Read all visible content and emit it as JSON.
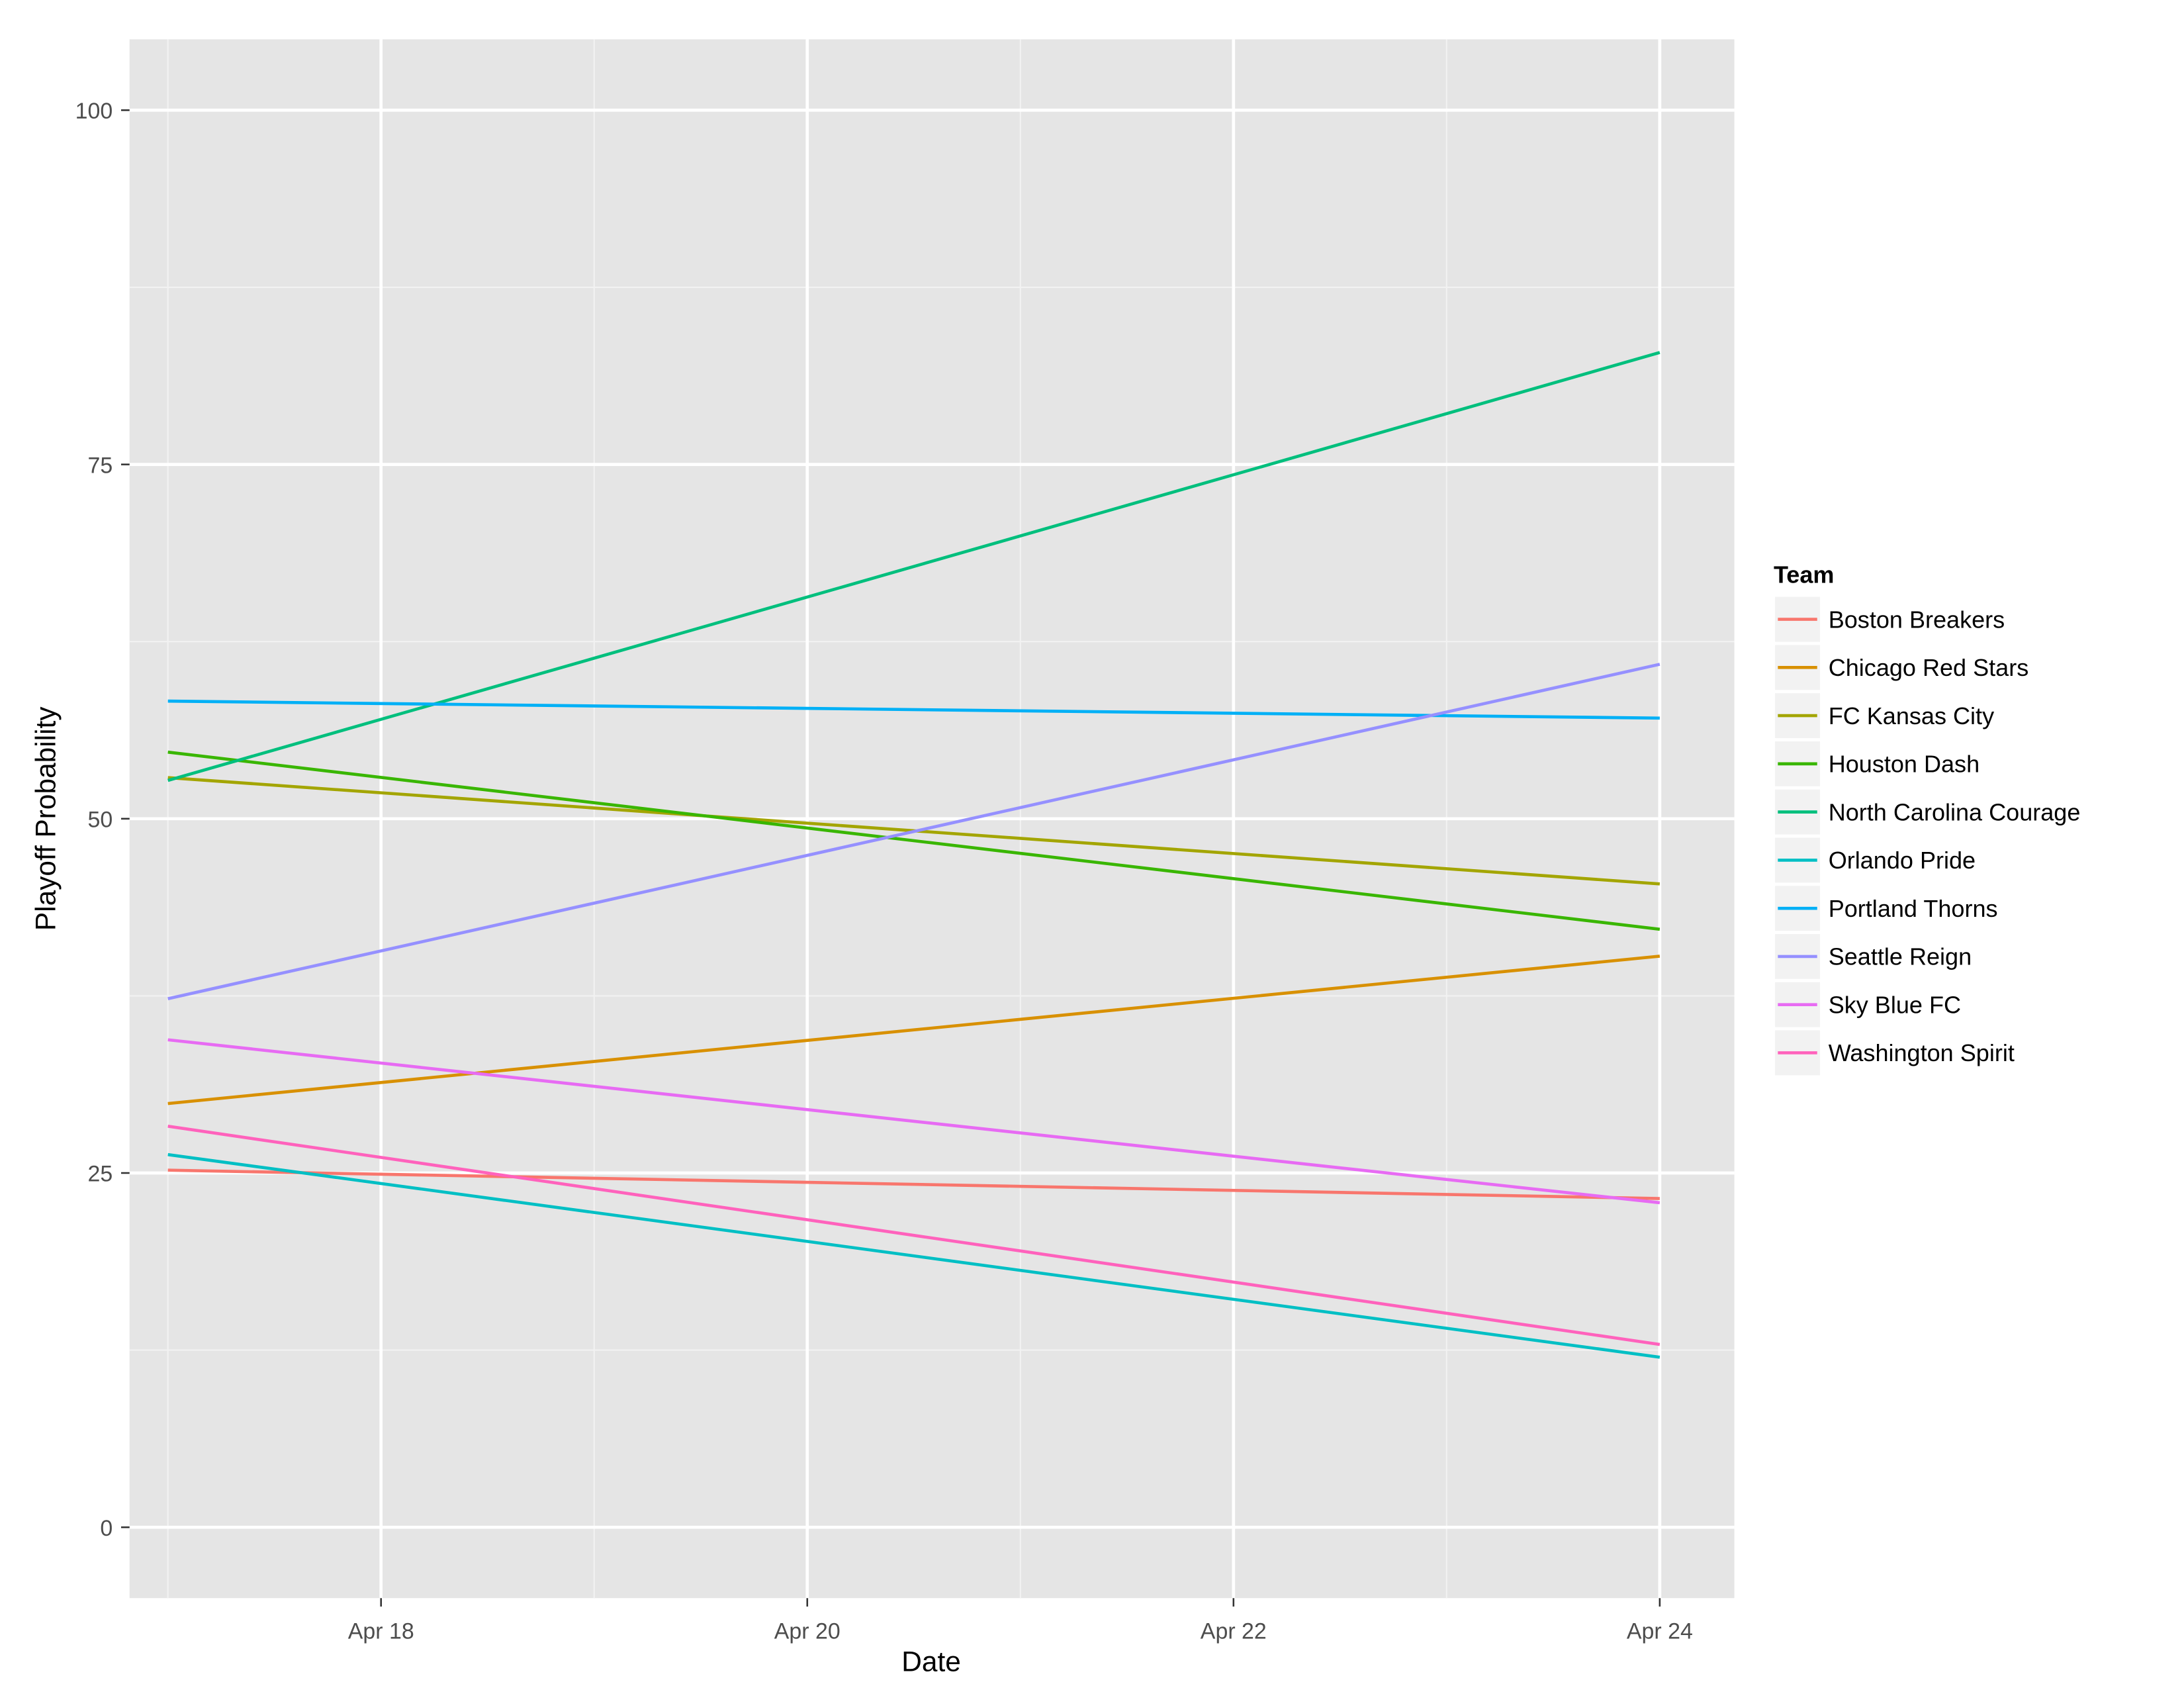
{
  "chart_data": {
    "type": "line",
    "title": "",
    "xlabel": "Date",
    "ylabel": "Playoff Probability",
    "x": [
      "Apr 17",
      "Apr 24"
    ],
    "x_days": [
      17,
      24
    ],
    "xlim_days": [
      16.82,
      24.35
    ],
    "ylim": [
      -5,
      105
    ],
    "x_ticks": [
      {
        "day": 18,
        "label": "Apr 18"
      },
      {
        "day": 20,
        "label": "Apr 20"
      },
      {
        "day": 22,
        "label": "Apr 22"
      },
      {
        "day": 24,
        "label": "Apr 24"
      }
    ],
    "y_ticks": [
      0,
      25,
      50,
      75,
      100
    ],
    "y_tick_labels": [
      "0",
      "25",
      "50",
      "75",
      "100"
    ],
    "grid": true,
    "legend": {
      "title": "Team",
      "placement": "right"
    },
    "series": [
      {
        "name": "Boston Breakers",
        "color": "#F8766D",
        "values": [
          25.2,
          23.2
        ]
      },
      {
        "name": "Chicago Red Stars",
        "color": "#D89000",
        "values": [
          29.9,
          40.3
        ]
      },
      {
        "name": "FC Kansas City",
        "color": "#A3A500",
        "values": [
          52.9,
          45.4
        ]
      },
      {
        "name": "Houston Dash",
        "color": "#39B600",
        "values": [
          54.7,
          42.2
        ]
      },
      {
        "name": "North Carolina Courage",
        "color": "#00BF7D",
        "values": [
          52.7,
          82.9
        ]
      },
      {
        "name": "Orlando Pride",
        "color": "#00BFC4",
        "values": [
          26.3,
          12.0
        ]
      },
      {
        "name": "Portland Thorns",
        "color": "#00B0F6",
        "values": [
          58.3,
          57.1
        ]
      },
      {
        "name": "Seattle Reign",
        "color": "#9590FF",
        "values": [
          37.3,
          60.9
        ]
      },
      {
        "name": "Sky Blue FC",
        "color": "#E76BF3",
        "values": [
          34.4,
          22.9
        ]
      },
      {
        "name": "Washington Spirit",
        "color": "#FF62BC",
        "values": [
          28.3,
          12.9
        ]
      }
    ]
  }
}
